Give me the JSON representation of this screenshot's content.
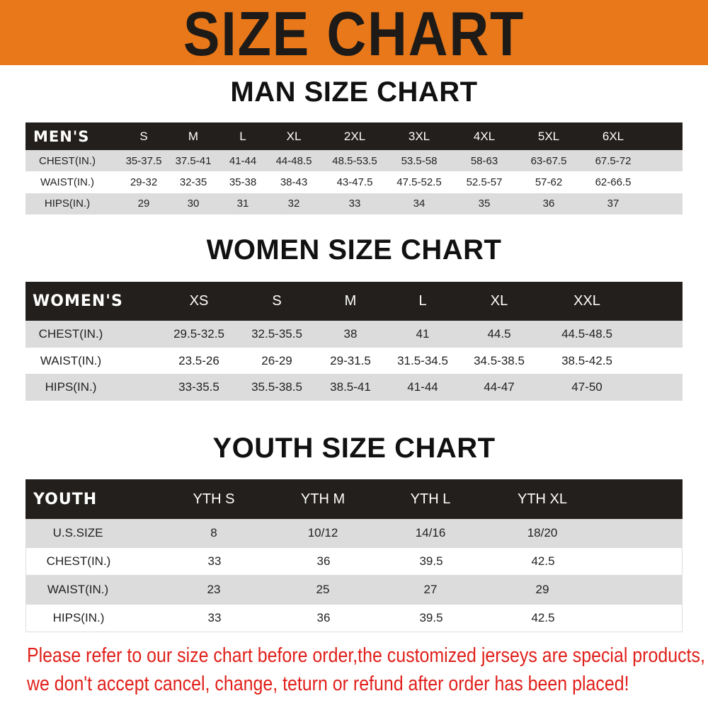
{
  "title": "SIZE CHART",
  "colors": {
    "banner": "#E8781A",
    "header_row": "#231f1c",
    "stripe": "#dcdcdc",
    "note": "#e0201b"
  },
  "men": {
    "title": "MAN SIZE CHART",
    "header": [
      "MEN'S",
      "S",
      "M",
      "L",
      "XL",
      "2XL",
      "3XL",
      "4XL",
      "5XL",
      "6XL"
    ],
    "rows": [
      [
        "CHEST(IN.)",
        "35-37.5",
        "37.5-41",
        "41-44",
        "44-48.5",
        "48.5-53.5",
        "53.5-58",
        "58-63",
        "63-67.5",
        "67.5-72"
      ],
      [
        "WAIST(IN.)",
        "29-32",
        "32-35",
        "35-38",
        "38-43",
        "43-47.5",
        "47.5-52.5",
        "52.5-57",
        "57-62",
        "62-66.5"
      ],
      [
        "HIPS(IN.)",
        "29",
        "30",
        "31",
        "32",
        "33",
        "34",
        "35",
        "36",
        "37"
      ]
    ]
  },
  "women": {
    "title": "WOMEN SIZE CHART",
    "header": [
      "WOMEN'S",
      "XS",
      "S",
      "M",
      "L",
      "XL",
      "XXL"
    ],
    "rows": [
      [
        "CHEST(IN.)",
        "29.5-32.5",
        "32.5-35.5",
        "38",
        "41",
        "44.5",
        "44.5-48.5"
      ],
      [
        "WAIST(IN.)",
        "23.5-26",
        "26-29",
        "29-31.5",
        "31.5-34.5",
        "34.5-38.5",
        "38.5-42.5"
      ],
      [
        "HIPS(IN.)",
        "33-35.5",
        "35.5-38.5",
        "38.5-41",
        "41-44",
        "44-47",
        "47-50"
      ]
    ]
  },
  "youth": {
    "title": "YOUTH SIZE CHART",
    "header": [
      "YOUTH",
      "YTH S",
      "YTH M",
      "YTH L",
      "YTH XL"
    ],
    "rows": [
      [
        "U.S.SIZE",
        "8",
        "10/12",
        "14/16",
        "18/20"
      ],
      [
        "CHEST(IN.)",
        "33",
        "36",
        "39.5",
        "42.5"
      ],
      [
        "WAIST(IN.)",
        "23",
        "25",
        "27",
        "29"
      ],
      [
        "HIPS(IN.)",
        "33",
        "36",
        "39.5",
        "42.5"
      ]
    ]
  },
  "notice": [
    "Please refer to our size chart before order,the customized jerseys are special products,",
    "we don't accept cancel, change, teturn or refund after order has been placed!"
  ]
}
